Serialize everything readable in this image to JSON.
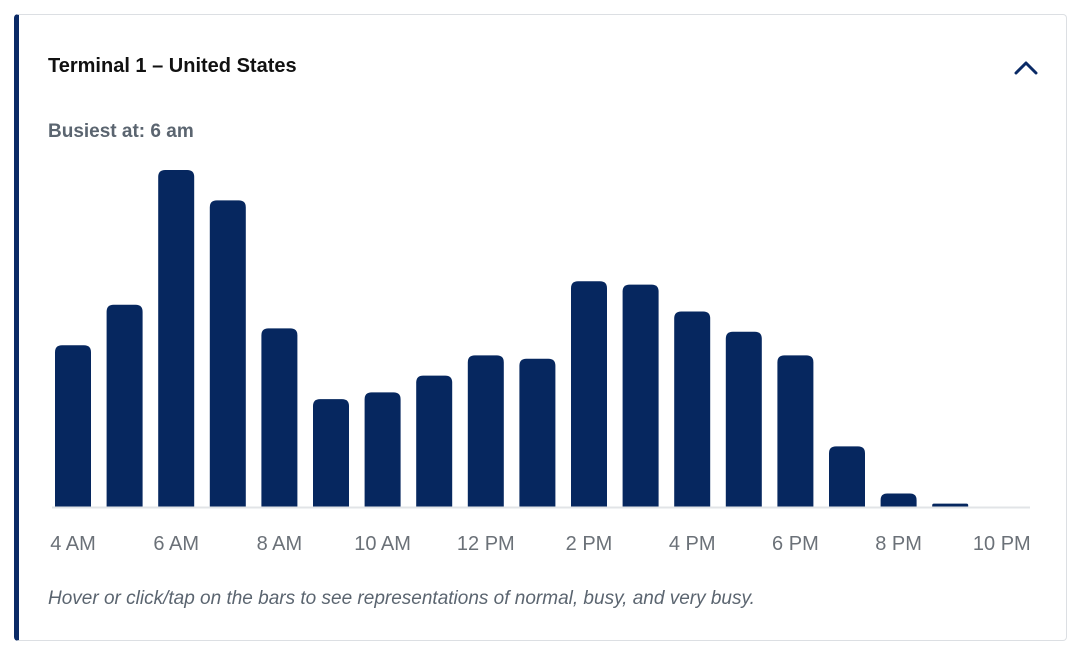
{
  "card": {
    "title": "Terminal 1 – United States",
    "collapse_icon": "chevron-up-icon",
    "busiest_text": "Busiest at: 6 am",
    "hint_text": "Hover or click/tap on the bars to see representations of normal, busy, and very busy."
  },
  "colors": {
    "accent": "#0a2a66",
    "bar": "#06275f",
    "baseline": "#e2e4e7",
    "muted_text": "#5b6570"
  },
  "chart_data": {
    "type": "bar",
    "categories": [
      "4 AM",
      "5 AM",
      "6 AM",
      "7 AM",
      "8 AM",
      "9 AM",
      "10 AM",
      "11 AM",
      "12 PM",
      "1 PM",
      "2 PM",
      "3 PM",
      "4 PM",
      "5 PM",
      "6 PM",
      "7 PM",
      "8 PM",
      "9 PM",
      "10 PM"
    ],
    "values": [
      48,
      60,
      100,
      91,
      53,
      32,
      34,
      39,
      45,
      44,
      67,
      66,
      58,
      52,
      45,
      18,
      4,
      1,
      0
    ],
    "tick_labels": [
      "4 AM",
      "6 AM",
      "8 AM",
      "10 AM",
      "12 PM",
      "2 PM",
      "4 PM",
      "6 PM",
      "8 PM",
      "10 PM"
    ],
    "ylim": [
      0,
      100
    ],
    "grid": false,
    "title": "",
    "xlabel": "",
    "ylabel": ""
  }
}
